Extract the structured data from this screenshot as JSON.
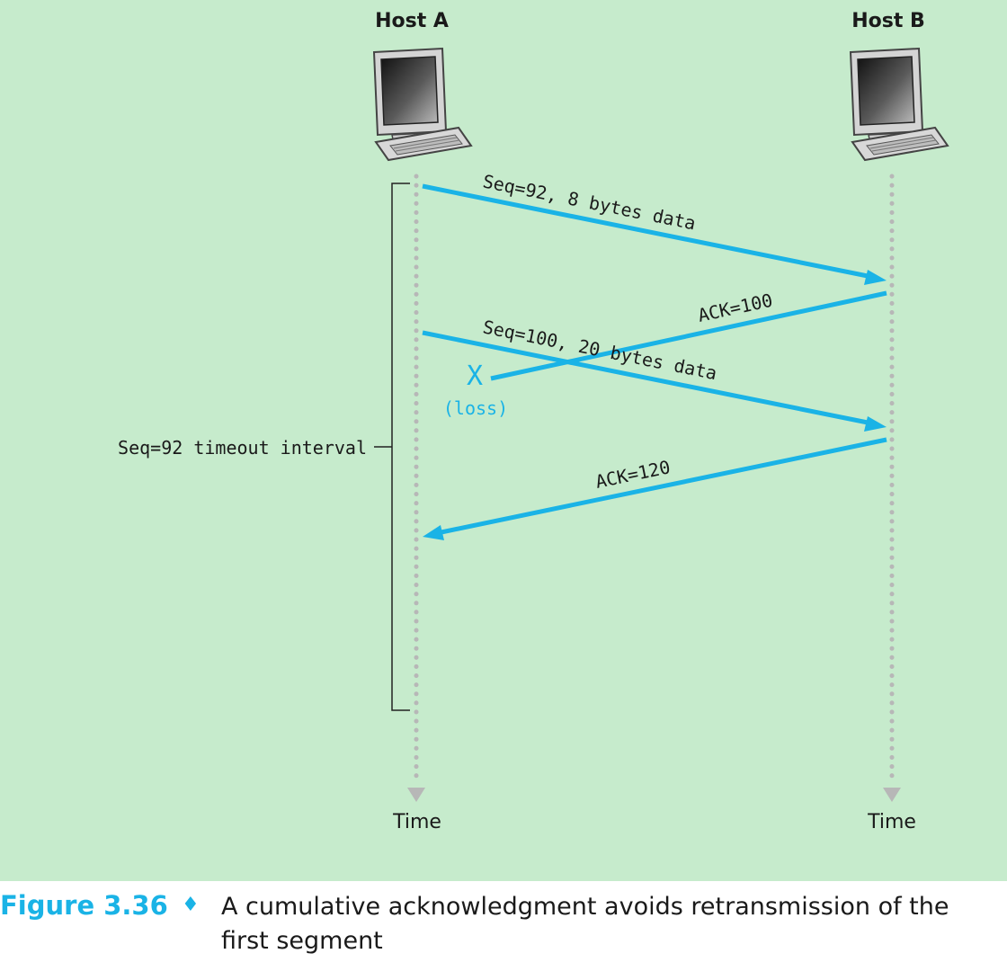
{
  "hosts": {
    "a_label": "Host A",
    "b_label": "Host B"
  },
  "messages": {
    "seq92": "Seq=92, 8 bytes data",
    "ack100": "ACK=100",
    "seq100": "Seq=100, 20 bytes data",
    "ack120": "ACK=120",
    "loss_mark": "X",
    "loss_label": "(loss)"
  },
  "timeout": {
    "label": "Seq=92 timeout interval"
  },
  "time": {
    "a_label": "Time",
    "b_label": "Time"
  },
  "caption": {
    "figure_label": "Figure 3.36",
    "separator": "♦",
    "text": "A cumulative acknowledgment avoids retransmission of the first segment"
  },
  "colors": {
    "background": "#c6ebcc",
    "arrow": "#1ab3e6",
    "timeline": "#b7b7b7"
  }
}
